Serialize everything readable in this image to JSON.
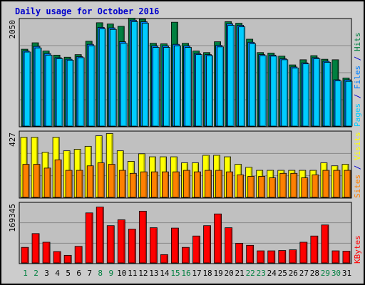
{
  "title": "Daily usage for October 2016",
  "chart_data": [
    {
      "type": "bar",
      "panel": "hits-files-pages",
      "categories": [
        "1",
        "2",
        "3",
        "4",
        "5",
        "6",
        "7",
        "8",
        "9",
        "10",
        "11",
        "12",
        "13",
        "14",
        "15",
        "16",
        "17",
        "18",
        "19",
        "20",
        "21",
        "22",
        "23",
        "24",
        "25",
        "26",
        "27",
        "28",
        "29",
        "30",
        "31"
      ],
      "weekend_days": [
        "1",
        "2",
        "8",
        "9",
        "15",
        "16",
        "22",
        "23",
        "29",
        "30"
      ],
      "ymax_label": "2050",
      "ylim": [
        0,
        2050
      ],
      "series": [
        {
          "name": "Hits",
          "color": "#008040",
          "values": [
            1495,
            1620,
            1460,
            1380,
            1340,
            1390,
            1650,
            2010,
            1985,
            1940,
            2100,
            2080,
            1610,
            1600,
            2020,
            1610,
            1460,
            1430,
            1640,
            2030,
            2000,
            1690,
            1430,
            1420,
            1360,
            1190,
            1290,
            1370,
            1300,
            1290,
            935
          ]
        },
        {
          "name": "Files",
          "color": "#0080ff",
          "values": [
            1460,
            1550,
            1410,
            1330,
            1300,
            1350,
            1590,
            1920,
            1910,
            1640,
            2060,
            2030,
            1560,
            1560,
            1590,
            1560,
            1410,
            1390,
            1570,
            1990,
            1960,
            1630,
            1390,
            1380,
            1310,
            1150,
            1230,
            1330,
            1260,
            900,
            900
          ]
        },
        {
          "name": "Pages",
          "color": "#00ccff",
          "values": [
            1440,
            1520,
            1380,
            1310,
            1280,
            1330,
            1560,
            1890,
            1880,
            1610,
            2030,
            2000,
            1530,
            1530,
            1560,
            1530,
            1390,
            1370,
            1540,
            1960,
            1930,
            1600,
            1370,
            1360,
            1290,
            1130,
            1210,
            1310,
            1240,
            880,
            870
          ]
        }
      ]
    },
    {
      "type": "bar",
      "panel": "visits-sites",
      "categories": [
        "1",
        "2",
        "3",
        "4",
        "5",
        "6",
        "7",
        "8",
        "9",
        "10",
        "11",
        "12",
        "13",
        "14",
        "15",
        "16",
        "17",
        "18",
        "19",
        "20",
        "21",
        "22",
        "23",
        "24",
        "25",
        "26",
        "27",
        "28",
        "29",
        "30",
        "31"
      ],
      "ymax_label": "427",
      "ylim": [
        0,
        427
      ],
      "series": [
        {
          "name": "Visits",
          "color": "#ffff00",
          "values": [
            400,
            400,
            300,
            400,
            310,
            320,
            340,
            410,
            425,
            310,
            240,
            290,
            270,
            270,
            270,
            230,
            230,
            280,
            280,
            270,
            220,
            200,
            180,
            180,
            180,
            180,
            180,
            180,
            230,
            210,
            220
          ]
        },
        {
          "name": "Sites",
          "color": "#ff8000",
          "values": [
            220,
            220,
            195,
            250,
            180,
            180,
            210,
            230,
            220,
            180,
            160,
            170,
            170,
            170,
            170,
            180,
            170,
            180,
            180,
            170,
            150,
            140,
            140,
            130,
            160,
            160,
            130,
            150,
            180,
            180,
            180
          ]
        }
      ]
    },
    {
      "type": "bar",
      "panel": "kbytes",
      "categories": [
        "1",
        "2",
        "3",
        "4",
        "5",
        "6",
        "7",
        "8",
        "9",
        "10",
        "11",
        "12",
        "13",
        "14",
        "15",
        "16",
        "17",
        "18",
        "19",
        "20",
        "21",
        "22",
        "23",
        "24",
        "25",
        "26",
        "27",
        "28",
        "29",
        "30",
        "31"
      ],
      "ymax_label": "169345",
      "ylim": [
        0,
        169345
      ],
      "series": [
        {
          "name": "KBytes",
          "color": "#ff0000",
          "values": [
            45000,
            85000,
            60000,
            33000,
            22000,
            48000,
            145000,
            162000,
            108000,
            125000,
            98000,
            150000,
            102000,
            24000,
            101000,
            45000,
            78000,
            108000,
            142000,
            102000,
            57000,
            51000,
            35000,
            35000,
            36000,
            38000,
            60000,
            78000,
            110000,
            35000,
            34000
          ]
        }
      ]
    }
  ],
  "right_labels": {
    "top": [
      {
        "text": "Pages",
        "color": "#00ccff"
      },
      {
        "text": " / ",
        "color": "#0000cc"
      },
      {
        "text": "Files",
        "color": "#0080ff"
      },
      {
        "text": " / ",
        "color": "#0000cc"
      },
      {
        "text": "Hits",
        "color": "#008040"
      }
    ],
    "middle": [
      {
        "text": "Sites",
        "color": "#ff8000"
      },
      {
        "text": " / ",
        "color": "#0000cc"
      },
      {
        "text": "Visits",
        "color": "#ffff00"
      }
    ],
    "bottom": [
      {
        "text": "KBytes",
        "color": "#ff0000"
      }
    ]
  },
  "colors": {
    "background": "#cccccc",
    "plot_background": "#c0c0c0",
    "title": "#0000cc",
    "axis_label": "#000000",
    "weekday_label": "#000000",
    "weekend_label": "#008040"
  }
}
